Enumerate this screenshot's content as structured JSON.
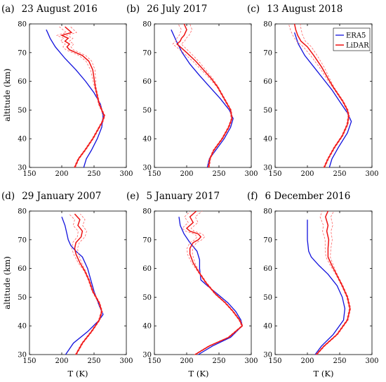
{
  "colors": {
    "era5": "#1111dd",
    "lidar": "#ee1111",
    "uncertainty": "#ff6666"
  },
  "ylabel": "altitude (km)",
  "xlabel": "T (K)",
  "legend": {
    "era5": "ERA5",
    "lidar": "LiDAR"
  },
  "chart_data": [
    {
      "type": "line",
      "panel": "(a)",
      "title": "23 August 2016",
      "xlim": [
        150,
        300
      ],
      "ylim": [
        30,
        80
      ],
      "xticks": [
        "150",
        "200",
        "250",
        "300"
      ],
      "yticks": [
        "30",
        "40",
        "50",
        "60",
        "70",
        "80"
      ],
      "series": [
        {
          "name": "ERA5",
          "x": [
            234,
            238,
            246,
            255,
            262,
            264,
            260,
            250,
            237,
            222,
            205,
            190,
            182,
            178,
            176
          ],
          "y": [
            30,
            33,
            36,
            40,
            44,
            48,
            52,
            56,
            60,
            64,
            68,
            72,
            75,
            77,
            78
          ]
        },
        {
          "name": "LiDAR",
          "x": [
            220,
            226,
            236,
            248,
            258,
            263,
            266,
            262,
            258,
            255,
            252,
            250,
            248,
            242,
            232,
            222,
            212,
            208,
            212,
            205,
            210,
            200,
            215,
            205
          ],
          "y": [
            30,
            33,
            36,
            40,
            44,
            46,
            48,
            50,
            52,
            55,
            58,
            61,
            64,
            67,
            69,
            70,
            71,
            72,
            73,
            74,
            75,
            76,
            77,
            79
          ]
        }
      ]
    },
    {
      "type": "line",
      "panel": "(b)",
      "title": "26 July 2017",
      "xlim": [
        150,
        300
      ],
      "ylim": [
        30,
        80
      ],
      "xticks": [
        "150",
        "200",
        "250",
        "300"
      ],
      "yticks": [
        "30",
        "40",
        "50",
        "60",
        "70",
        "80"
      ],
      "series": [
        {
          "name": "ERA5",
          "x": [
            232,
            235,
            245,
            258,
            268,
            272,
            266,
            252,
            236,
            220,
            205,
            193,
            184,
            176
          ],
          "y": [
            30,
            33,
            36,
            40,
            44,
            47,
            50,
            54,
            58,
            62,
            66,
            70,
            74,
            78
          ]
        },
        {
          "name": "LiDAR",
          "x": [
            234,
            236,
            242,
            255,
            265,
            270,
            268,
            258,
            248,
            238,
            226,
            214,
            200,
            190,
            185,
            190,
            192,
            196,
            200,
            196
          ],
          "y": [
            30,
            33,
            36,
            40,
            44,
            47,
            50,
            54,
            58,
            61,
            64,
            67,
            70,
            72,
            73,
            74,
            75,
            76,
            78,
            80
          ]
        }
      ]
    },
    {
      "type": "line",
      "panel": "(c)",
      "title": "13 August 2018",
      "xlim": [
        150,
        300
      ],
      "ylim": [
        30,
        80
      ],
      "xticks": [
        "150",
        "200",
        "250",
        "300"
      ],
      "yticks": [
        "30",
        "40",
        "50",
        "60",
        "70",
        "80"
      ],
      "series": [
        {
          "name": "ERA5",
          "x": [
            234,
            238,
            248,
            262,
            268,
            262,
            250,
            238,
            224,
            210,
            196,
            186,
            180
          ],
          "y": [
            30,
            33,
            37,
            42,
            46,
            49,
            53,
            57,
            61,
            65,
            69,
            73,
            77
          ]
        },
        {
          "name": "LiDAR",
          "x": [
            226,
            232,
            242,
            254,
            262,
            264,
            262,
            255,
            246,
            240,
            232,
            222,
            210,
            200,
            190,
            185,
            182,
            180
          ],
          "y": [
            30,
            33,
            37,
            41,
            45,
            48,
            50,
            53,
            56,
            58,
            61,
            65,
            69,
            72,
            74,
            76,
            78,
            80
          ]
        }
      ]
    },
    {
      "type": "line",
      "panel": "(d)",
      "title": "29 January 2007",
      "xlim": [
        150,
        300
      ],
      "ylim": [
        30,
        80
      ],
      "xticks": [
        "150",
        "200",
        "250",
        "300"
      ],
      "yticks": [
        "30",
        "40",
        "50",
        "60",
        "70",
        "80"
      ],
      "series": [
        {
          "name": "ERA5",
          "x": [
            206,
            218,
            240,
            258,
            264,
            258,
            250,
            245,
            240,
            232,
            222,
            214,
            210,
            208,
            205,
            200
          ],
          "y": [
            30,
            34,
            38,
            42,
            44,
            47,
            52,
            56,
            60,
            64,
            66,
            68,
            70,
            72,
            75,
            78
          ]
        },
        {
          "name": "LiDAR",
          "x": [
            222,
            232,
            246,
            258,
            262,
            258,
            248,
            242,
            236,
            228,
            222,
            220,
            222,
            230,
            232,
            225,
            228,
            220
          ],
          "y": [
            30,
            34,
            38,
            42,
            45,
            48,
            52,
            56,
            59,
            62,
            65,
            67,
            69,
            71,
            73,
            75,
            77,
            79
          ]
        }
      ]
    },
    {
      "type": "line",
      "panel": "(e)",
      "title": "5 January 2017",
      "xlim": [
        150,
        300
      ],
      "ylim": [
        30,
        80
      ],
      "xticks": [
        "150",
        "200",
        "250",
        "300"
      ],
      "yticks": [
        "30",
        "40",
        "50",
        "60",
        "70",
        "80"
      ],
      "series": [
        {
          "name": "ERA5",
          "x": [
            218,
            240,
            268,
            286,
            284,
            276,
            264,
            248,
            232,
            222,
            220,
            220,
            216,
            205,
            196,
            190,
            188
          ],
          "y": [
            30,
            33,
            36,
            40,
            42,
            45,
            48,
            51,
            54,
            56,
            60,
            63,
            66,
            69,
            72,
            75,
            78
          ]
        },
        {
          "name": "LiDAR",
          "x": [
            213,
            235,
            265,
            286,
            282,
            272,
            260,
            245,
            230,
            218,
            210,
            205,
            205,
            210,
            218,
            222,
            218,
            205,
            200,
            210,
            205,
            215
          ],
          "y": [
            30,
            33,
            36,
            40,
            42,
            45,
            48,
            51,
            55,
            59,
            62,
            65,
            67,
            69,
            70,
            71,
            72,
            73,
            74,
            76,
            78,
            80
          ]
        }
      ]
    },
    {
      "type": "line",
      "panel": "(f)",
      "title": "6 December 2016",
      "xlim": [
        150,
        300
      ],
      "ylim": [
        30,
        80
      ],
      "xticks": [
        "150",
        "200",
        "250",
        "300"
      ],
      "yticks": [
        "30",
        "40",
        "50",
        "60",
        "70",
        "80"
      ],
      "series": [
        {
          "name": "ERA5",
          "x": [
            212,
            222,
            240,
            256,
            258,
            254,
            246,
            232,
            218,
            206,
            202,
            200,
            200
          ],
          "y": [
            30,
            33,
            37,
            42,
            46,
            50,
            54,
            58,
            61,
            64,
            66,
            70,
            77
          ]
        },
        {
          "name": "LiDAR",
          "x": [
            214,
            226,
            246,
            262,
            266,
            262,
            254,
            245,
            238,
            232,
            232,
            233,
            230,
            232,
            228,
            232
          ],
          "y": [
            30,
            33,
            37,
            42,
            46,
            50,
            54,
            58,
            61,
            64,
            67,
            70,
            73,
            75,
            78,
            80
          ]
        }
      ]
    }
  ]
}
